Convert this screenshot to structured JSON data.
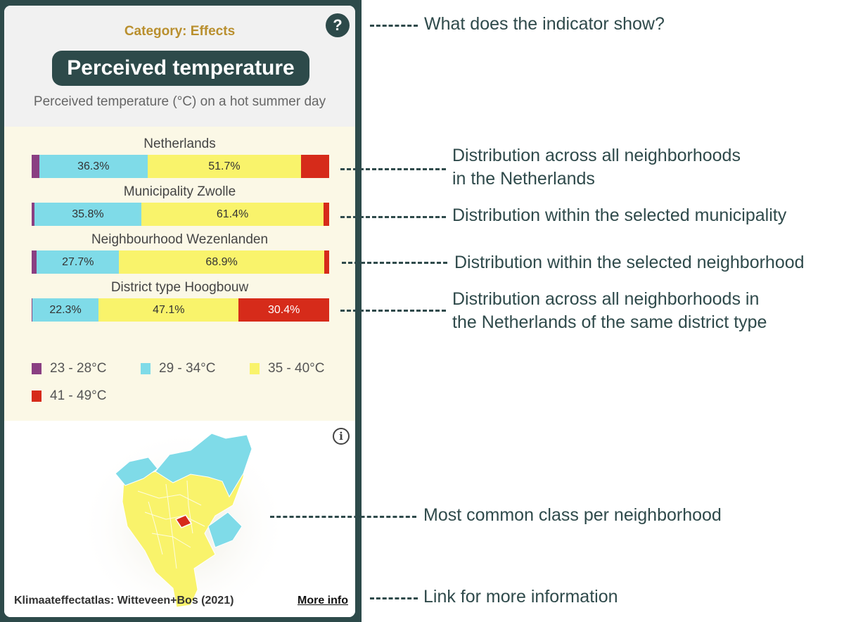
{
  "card": {
    "category": "Category: Effects",
    "help_symbol": "?",
    "title": "Perceived temperature",
    "subtitle": "Perceived temperature (°C) on a hot summer day"
  },
  "chart_data": {
    "type": "bar",
    "stacked": true,
    "orientation": "horizontal",
    "categories": [
      "Netherlands",
      "Municipality Zwolle",
      "Neighbourhood Wezenlanden",
      "District type Hoogbouw"
    ],
    "series": [
      {
        "name": "23 - 28°C",
        "color": "#8a3f82",
        "values": [
          2.6,
          1.0,
          1.7,
          0.2
        ]
      },
      {
        "name": "29 - 34°C",
        "color": "#7fdbe8",
        "values": [
          36.3,
          35.8,
          27.7,
          22.3
        ]
      },
      {
        "name": "35 - 40°C",
        "color": "#f9f36b",
        "values": [
          51.7,
          61.4,
          68.9,
          47.1
        ]
      },
      {
        "name": "41 - 49°C",
        "color": "#d62b1a",
        "values": [
          9.4,
          1.8,
          1.7,
          30.4
        ]
      }
    ],
    "value_labels": [
      [
        "",
        "36.3%",
        "51.7%",
        ""
      ],
      [
        "",
        "35.8%",
        "61.4%",
        ""
      ],
      [
        "",
        "27.7%",
        "68.9%",
        ""
      ],
      [
        "",
        "22.3%",
        "47.1%",
        "30.4%"
      ]
    ],
    "xlim": [
      0,
      100
    ],
    "legend": "bottom"
  },
  "map": {
    "info_symbol": "i",
    "credit": "Klimaateffectatlas: Witteveen+Bos (2021)",
    "more_info_label": "More info"
  },
  "callouts": {
    "indicator": "What does the indicator show?",
    "netherlands_line1": "Distribution across all neighborhoods",
    "netherlands_line2": "in the Netherlands",
    "municipality": "Distribution within the selected municipality",
    "neighborhood": "Distribution within the selected neighborhood",
    "district_line1": "Distribution across all neighborhoods in",
    "district_line2": "the Netherlands of the same district type",
    "map": "Most common class per neighborhood",
    "link": "Link for more information"
  }
}
